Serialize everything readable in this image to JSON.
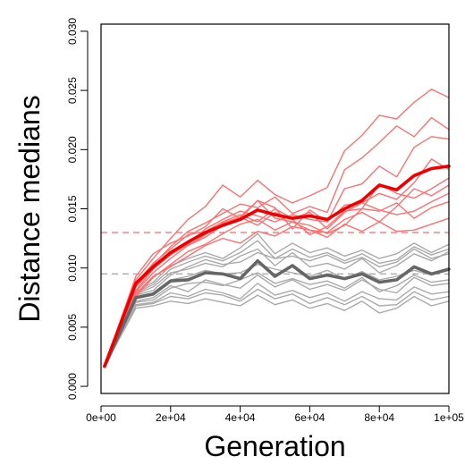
{
  "chart_data": {
    "type": "line",
    "title": "",
    "xlabel": "Generation",
    "ylabel": "Distance medians",
    "xlim": [
      0,
      100000
    ],
    "ylim": [
      0,
      0.03
    ],
    "x_ticks": [
      0,
      20000,
      40000,
      60000,
      80000,
      100000
    ],
    "x_tick_labels": [
      "0e+00",
      "2e+04",
      "4e+04",
      "6e+04",
      "8e+04",
      "1e+05"
    ],
    "y_ticks": [
      0,
      0.005,
      0.01,
      0.015,
      0.02,
      0.025,
      0.03
    ],
    "y_tick_labels": [
      "0.000",
      "0.005",
      "0.010",
      "0.015",
      "0.020",
      "0.025",
      "0.030"
    ],
    "grid": false,
    "legend": "none",
    "x": [
      1000,
      10000,
      15000,
      20000,
      25000,
      30000,
      35000,
      40000,
      45000,
      50000,
      55000,
      60000,
      65000,
      70000,
      75000,
      80000,
      85000,
      90000,
      95000,
      100000
    ],
    "reference_lines": [
      {
        "y": 0.013,
        "color": "#ff6666",
        "style": "dashed"
      },
      {
        "y": 0.0095,
        "color": "#aaaaaa",
        "style": "dashed"
      }
    ],
    "series": [
      {
        "group": "red",
        "emphasis": "mean",
        "color": "#ee0000",
        "values": [
          0.0017,
          0.0087,
          0.0101,
          0.0113,
          0.0122,
          0.013,
          0.0136,
          0.0141,
          0.0149,
          0.0145,
          0.0142,
          0.0144,
          0.0141,
          0.015,
          0.0157,
          0.017,
          0.0166,
          0.0178,
          0.0184,
          0.0186
        ]
      },
      {
        "group": "red",
        "emphasis": "replicate",
        "color": "#ff7070",
        "values": [
          0.0017,
          0.009,
          0.0108,
          0.0125,
          0.0141,
          0.0152,
          0.017,
          0.016,
          0.0174,
          0.0162,
          0.0155,
          0.0161,
          0.0168,
          0.0199,
          0.0212,
          0.0229,
          0.0226,
          0.024,
          0.0251,
          0.0244
        ]
      },
      {
        "group": "red",
        "emphasis": "replicate",
        "color": "#ff7070",
        "values": [
          0.0017,
          0.0085,
          0.0103,
          0.0118,
          0.0131,
          0.0138,
          0.0146,
          0.0154,
          0.0151,
          0.016,
          0.0146,
          0.0152,
          0.0147,
          0.0183,
          0.0193,
          0.0206,
          0.022,
          0.0211,
          0.0227,
          0.0217
        ]
      },
      {
        "group": "red",
        "emphasis": "replicate",
        "color": "#ff7070",
        "values": [
          0.0017,
          0.0081,
          0.0099,
          0.0111,
          0.012,
          0.0133,
          0.0141,
          0.0148,
          0.0144,
          0.0139,
          0.0145,
          0.0141,
          0.0139,
          0.0167,
          0.0171,
          0.0186,
          0.0177,
          0.0202,
          0.0211,
          0.0209
        ]
      },
      {
        "group": "red",
        "emphasis": "replicate",
        "color": "#ff7070",
        "values": [
          0.0017,
          0.0093,
          0.0112,
          0.0121,
          0.0127,
          0.0135,
          0.015,
          0.0142,
          0.0157,
          0.0151,
          0.0133,
          0.0149,
          0.0139,
          0.0153,
          0.0155,
          0.0163,
          0.0158,
          0.0172,
          0.0192,
          0.0183
        ]
      },
      {
        "group": "red",
        "emphasis": "replicate",
        "color": "#ff7070",
        "values": [
          0.0017,
          0.008,
          0.0096,
          0.0108,
          0.0119,
          0.0126,
          0.0136,
          0.0143,
          0.0136,
          0.0147,
          0.0141,
          0.0128,
          0.0135,
          0.0148,
          0.015,
          0.0171,
          0.0163,
          0.0159,
          0.0167,
          0.0176
        ]
      },
      {
        "group": "red",
        "emphasis": "replicate",
        "color": "#ff7070",
        "values": [
          0.0017,
          0.0076,
          0.0092,
          0.0103,
          0.0114,
          0.012,
          0.0129,
          0.0137,
          0.0141,
          0.0132,
          0.0139,
          0.0132,
          0.013,
          0.0141,
          0.0147,
          0.0139,
          0.0152,
          0.0167,
          0.0161,
          0.017
        ]
      },
      {
        "group": "red",
        "emphasis": "replicate",
        "color": "#ff7070",
        "values": [
          0.0017,
          0.0087,
          0.0104,
          0.0116,
          0.0128,
          0.0131,
          0.0139,
          0.0145,
          0.0139,
          0.015,
          0.0142,
          0.0147,
          0.0133,
          0.0147,
          0.0155,
          0.0149,
          0.0145,
          0.0148,
          0.0156,
          0.0163
        ]
      },
      {
        "group": "red",
        "emphasis": "replicate",
        "color": "#ff7070",
        "values": [
          0.0017,
          0.0078,
          0.0093,
          0.0101,
          0.011,
          0.0119,
          0.0125,
          0.0121,
          0.0131,
          0.0127,
          0.0135,
          0.0132,
          0.0126,
          0.0137,
          0.0131,
          0.0139,
          0.0131,
          0.0132,
          0.0137,
          0.0142
        ]
      },
      {
        "group": "red",
        "emphasis": "replicate",
        "color": "#ff7070",
        "values": [
          0.0017,
          0.0084,
          0.01,
          0.0114,
          0.0119,
          0.0128,
          0.0138,
          0.0143,
          0.0157,
          0.0142,
          0.0139,
          0.0136,
          0.0129,
          0.0136,
          0.015,
          0.0148,
          0.0155,
          0.0142,
          0.0151,
          0.0156
        ]
      },
      {
        "group": "gray",
        "emphasis": "mean",
        "color": "#666666",
        "values": [
          0.0017,
          0.0075,
          0.0078,
          0.0089,
          0.009,
          0.0096,
          0.0095,
          0.0091,
          0.0106,
          0.0093,
          0.0102,
          0.0091,
          0.0094,
          0.0091,
          0.0095,
          0.0088,
          0.009,
          0.0101,
          0.0095,
          0.0099
        ]
      },
      {
        "group": "gray",
        "emphasis": "replicate",
        "color": "#aaaaaa",
        "values": [
          0.0017,
          0.008,
          0.0088,
          0.0102,
          0.0108,
          0.0113,
          0.0108,
          0.0117,
          0.0129,
          0.0112,
          0.0121,
          0.0113,
          0.0117,
          0.011,
          0.0115,
          0.0108,
          0.0112,
          0.0121,
          0.0113,
          0.012
        ]
      },
      {
        "group": "gray",
        "emphasis": "replicate",
        "color": "#aaaaaa",
        "values": [
          0.0017,
          0.0078,
          0.0084,
          0.0096,
          0.0099,
          0.0104,
          0.0101,
          0.011,
          0.0116,
          0.0102,
          0.0113,
          0.0101,
          0.0104,
          0.0099,
          0.0108,
          0.0096,
          0.0102,
          0.0112,
          0.0106,
          0.0114
        ]
      },
      {
        "group": "gray",
        "emphasis": "replicate",
        "color": "#aaaaaa",
        "values": [
          0.0017,
          0.0072,
          0.0075,
          0.0085,
          0.008,
          0.009,
          0.0086,
          0.0083,
          0.0094,
          0.0084,
          0.009,
          0.0082,
          0.0086,
          0.0081,
          0.009,
          0.0082,
          0.0079,
          0.0092,
          0.0085,
          0.0087
        ]
      },
      {
        "group": "gray",
        "emphasis": "replicate",
        "color": "#aaaaaa",
        "values": [
          0.0017,
          0.0069,
          0.0071,
          0.0079,
          0.0076,
          0.0082,
          0.0079,
          0.0074,
          0.0087,
          0.0077,
          0.0081,
          0.0075,
          0.0079,
          0.0072,
          0.008,
          0.0074,
          0.0073,
          0.0084,
          0.0078,
          0.008
        ]
      },
      {
        "group": "gray",
        "emphasis": "replicate",
        "color": "#aaaaaa",
        "values": [
          0.0017,
          0.0066,
          0.0068,
          0.0072,
          0.007,
          0.0074,
          0.0071,
          0.0068,
          0.0077,
          0.0069,
          0.0073,
          0.0066,
          0.007,
          0.0064,
          0.0072,
          0.0062,
          0.0066,
          0.0076,
          0.0068,
          0.0072
        ]
      },
      {
        "group": "gray",
        "emphasis": "replicate",
        "color": "#aaaaaa",
        "values": [
          0.0017,
          0.0074,
          0.0079,
          0.009,
          0.0093,
          0.0098,
          0.0095,
          0.0096,
          0.0103,
          0.0099,
          0.0096,
          0.0093,
          0.0098,
          0.0091,
          0.0097,
          0.009,
          0.0093,
          0.0098,
          0.0094,
          0.0098
        ]
      },
      {
        "group": "gray",
        "emphasis": "replicate",
        "color": "#aaaaaa",
        "values": [
          0.0017,
          0.0077,
          0.0081,
          0.0094,
          0.0101,
          0.0107,
          0.0103,
          0.0105,
          0.0113,
          0.0108,
          0.011,
          0.0106,
          0.0111,
          0.0104,
          0.0109,
          0.0101,
          0.0105,
          0.0116,
          0.0108,
          0.0112
        ]
      },
      {
        "group": "gray",
        "emphasis": "replicate",
        "color": "#aaaaaa",
        "values": [
          0.0017,
          0.0071,
          0.0073,
          0.0083,
          0.0087,
          0.0088,
          0.0085,
          0.009,
          0.0096,
          0.0087,
          0.0091,
          0.0086,
          0.0089,
          0.0083,
          0.0092,
          0.008,
          0.0085,
          0.0094,
          0.0088,
          0.009
        ]
      },
      {
        "group": "gray",
        "emphasis": "replicate",
        "color": "#aaaaaa",
        "values": [
          0.0017,
          0.0068,
          0.007,
          0.0076,
          0.0074,
          0.0079,
          0.0077,
          0.0072,
          0.0082,
          0.0074,
          0.0078,
          0.007,
          0.0075,
          0.0069,
          0.0076,
          0.0068,
          0.0069,
          0.008,
          0.0073,
          0.0076
        ]
      },
      {
        "group": "gray",
        "emphasis": "replicate",
        "color": "#aaaaaa",
        "values": [
          0.0017,
          0.0079,
          0.0086,
          0.0099,
          0.0105,
          0.011,
          0.0106,
          0.0113,
          0.0123,
          0.0108,
          0.0116,
          0.0109,
          0.0113,
          0.0106,
          0.0112,
          0.0104,
          0.0107,
          0.0118,
          0.0111,
          0.0116
        ]
      }
    ]
  }
}
